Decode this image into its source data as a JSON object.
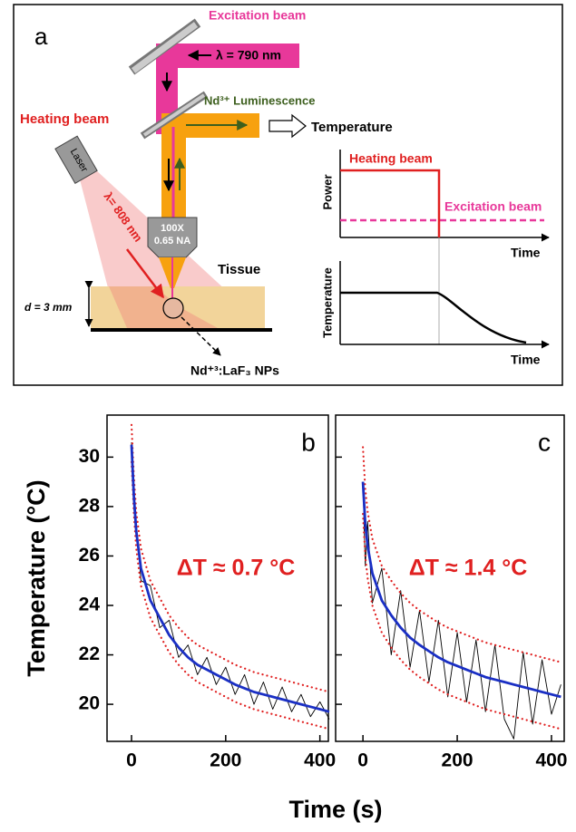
{
  "diagram": {
    "panel_label": "a",
    "excitation_beam": "Excitation beam",
    "excitation_wavelength": "λ = 790 nm",
    "luminescence": "Nd³⁺ Luminescence",
    "temperature_output": "Temperature",
    "heating_beam": "Heating beam",
    "laser": "Laser",
    "heating_wavelength": "λ= 808 nm",
    "objective_mag": "100X",
    "objective_na": "0.65 NA",
    "tissue": "Tissue",
    "thickness": "d = 3 mm",
    "nanoparticles": "Nd⁺³:LaF₃ NPs",
    "inset": {
      "power_label": "Power",
      "heating_beam": "Heating beam",
      "excitation_beam": "Excitation beam",
      "time_label_top": "Time",
      "temperature_label": "Temperature",
      "time_label_bottom": "Time"
    }
  },
  "chart_data": [
    {
      "type": "line",
      "panel_label": "b",
      "annotation": "ΔT ≈ 0.7 °C",
      "ylabel": "Temperature (°C)",
      "x": [
        0,
        5,
        10,
        20,
        40,
        60,
        80,
        100,
        120,
        140,
        160,
        180,
        200,
        220,
        240,
        260,
        280,
        300,
        320,
        340,
        360,
        380,
        400,
        420
      ],
      "xlim": [
        -52,
        418
      ],
      "ylim": [
        18.5,
        31.7
      ],
      "xticks": [
        0,
        200,
        400
      ],
      "yticks": [
        20,
        22,
        24,
        26,
        28,
        30
      ],
      "series": [
        {
          "color": "#000000",
          "style": "solid",
          "width": 0.9,
          "values": [
            30.6,
            27.9,
            27.4,
            25.0,
            24.8,
            23.1,
            23.4,
            21.9,
            22.4,
            21.2,
            21.9,
            20.8,
            21.5,
            20.4,
            21.2,
            20.0,
            20.9,
            19.8,
            20.7,
            19.7,
            20.4,
            19.5,
            20.1,
            19.4
          ]
        },
        {
          "color": "#e02020",
          "style": "dotted",
          "width": 2.2,
          "values": [
            31.3,
            29.2,
            27.8,
            26.3,
            25.0,
            24.3,
            23.6,
            23.1,
            22.7,
            22.4,
            22.2,
            22.0,
            21.8,
            21.6,
            21.45,
            21.3,
            21.2,
            21.1,
            21.0,
            20.9,
            20.8,
            20.7,
            20.6,
            20.5
          ]
        },
        {
          "color": "#e02020",
          "style": "dotted",
          "width": 2.2,
          "values": [
            29.8,
            27.7,
            26.3,
            24.8,
            23.5,
            22.8,
            22.1,
            21.6,
            21.2,
            20.9,
            20.7,
            20.5,
            20.3,
            20.1,
            19.95,
            19.8,
            19.7,
            19.6,
            19.5,
            19.4,
            19.3,
            19.2,
            19.1,
            19.0
          ]
        },
        {
          "color": "#1a2fc4",
          "style": "solid",
          "width": 2.8,
          "values": [
            30.5,
            28.4,
            27.0,
            25.5,
            24.2,
            23.5,
            22.8,
            22.3,
            21.9,
            21.6,
            21.4,
            21.2,
            21.0,
            20.8,
            20.65,
            20.5,
            20.4,
            20.3,
            20.2,
            20.1,
            20.0,
            19.9,
            19.8,
            19.7
          ]
        }
      ]
    },
    {
      "type": "line",
      "panel_label": "c",
      "annotation": "ΔT ≈ 1.4 °C",
      "xlabel": "Time (s)",
      "x": [
        0,
        5,
        10,
        20,
        40,
        60,
        80,
        100,
        120,
        140,
        160,
        180,
        200,
        220,
        240,
        260,
        280,
        300,
        320,
        340,
        360,
        380,
        400,
        420
      ],
      "xlim": [
        -58,
        427
      ],
      "ylim": [
        18.5,
        31.7
      ],
      "xticks": [
        0,
        200,
        400
      ],
      "series": [
        {
          "color": "#000000",
          "style": "solid",
          "width": 0.9,
          "values": [
            29.0,
            25.6,
            27.4,
            24.1,
            25.5,
            22.0,
            24.6,
            21.5,
            23.8,
            20.9,
            23.4,
            20.3,
            22.9,
            20.1,
            22.6,
            19.7,
            22.4,
            19.4,
            18.6,
            22.1,
            19.2,
            21.8,
            19.6,
            20.8
          ]
        },
        {
          "color": "#e02020",
          "style": "dotted",
          "width": 2.2,
          "values": [
            30.4,
            28.7,
            27.8,
            26.7,
            25.6,
            25.0,
            24.5,
            24.1,
            23.8,
            23.55,
            23.3,
            23.1,
            22.95,
            22.8,
            22.65,
            22.5,
            22.4,
            22.3,
            22.2,
            22.1,
            22.0,
            21.9,
            21.8,
            21.7
          ]
        },
        {
          "color": "#e02020",
          "style": "dotted",
          "width": 2.2,
          "values": [
            27.7,
            26.0,
            25.1,
            24.0,
            22.9,
            22.3,
            21.8,
            21.4,
            21.1,
            20.85,
            20.6,
            20.4,
            20.25,
            20.1,
            19.95,
            19.8,
            19.7,
            19.6,
            19.5,
            19.4,
            19.3,
            19.2,
            19.1,
            19.0
          ]
        },
        {
          "color": "#1a2fc4",
          "style": "solid",
          "width": 2.8,
          "values": [
            29.0,
            27.3,
            26.4,
            25.3,
            24.2,
            23.6,
            23.1,
            22.7,
            22.4,
            22.15,
            21.9,
            21.7,
            21.55,
            21.4,
            21.25,
            21.1,
            21.0,
            20.9,
            20.8,
            20.7,
            20.6,
            20.5,
            20.4,
            20.3
          ]
        }
      ]
    }
  ]
}
